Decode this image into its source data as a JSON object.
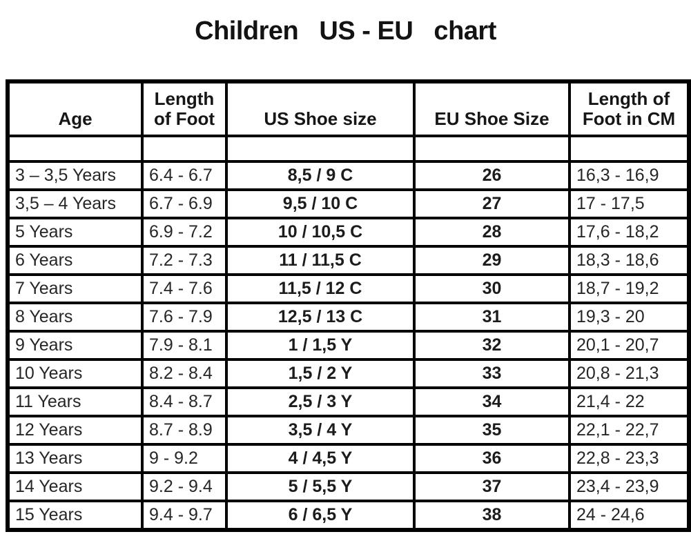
{
  "title": "Children   US - EU   chart",
  "table": {
    "display_headers": [
      "Age",
      "Length\nof Foot",
      "US Shoe size",
      "EU Shoe Size",
      "Length of\nFoot in CM"
    ]
  },
  "colors": {
    "background": "#ffffff",
    "border": "#000000",
    "header_text": "#161616",
    "body_text": "#262626"
  },
  "chart_data": {
    "type": "table",
    "title": "Children US - EU chart",
    "columns": [
      "Age",
      "Length of Foot",
      "US Shoe size",
      "EU Shoe Size",
      "Length of Foot in CM"
    ],
    "rows": [
      [
        "3 – 3,5 Years",
        "6.4 - 6.7",
        "8,5 / 9 C",
        "26",
        "16,3 - 16,9"
      ],
      [
        "3,5 – 4 Years",
        "6.7 - 6.9",
        "9,5 / 10 C",
        "27",
        "17 - 17,5"
      ],
      [
        "5 Years",
        "6.9 - 7.2",
        "10 / 10,5 C",
        "28",
        "17,6 - 18,2"
      ],
      [
        "6 Years",
        "7.2 - 7.3",
        "11 / 11,5 C",
        "29",
        "18,3 - 18,6"
      ],
      [
        "7 Years",
        "7.4 - 7.6",
        "11,5 / 12 C",
        "30",
        "18,7 - 19,2"
      ],
      [
        "8 Years",
        "7.6 - 7.9",
        "12,5 / 13 C",
        "31",
        "19,3 - 20"
      ],
      [
        "9 Years",
        "7.9 - 8.1",
        "1 / 1,5 Y",
        "32",
        "20,1 - 20,7"
      ],
      [
        "10 Years",
        "8.2 - 8.4",
        "1,5 / 2 Y",
        "33",
        "20,8 - 21,3"
      ],
      [
        "11 Years",
        "8.4 - 8.7",
        "2,5 / 3 Y",
        "34",
        "21,4 - 22"
      ],
      [
        "12 Years",
        "8.7 - 8.9",
        "3,5 / 4 Y",
        "35",
        "22,1 - 22,7"
      ],
      [
        "13 Years",
        "9 - 9.2",
        "4 / 4,5 Y",
        "36",
        "22,8 - 23,3"
      ],
      [
        "14 Years",
        "9.2 - 9.4",
        "5 / 5,5 Y",
        "37",
        "23,4 - 23,9"
      ],
      [
        "15 Years",
        "9.4 - 9.7",
        "6 / 6,5 Y",
        "38",
        "24 - 24,6"
      ]
    ]
  }
}
